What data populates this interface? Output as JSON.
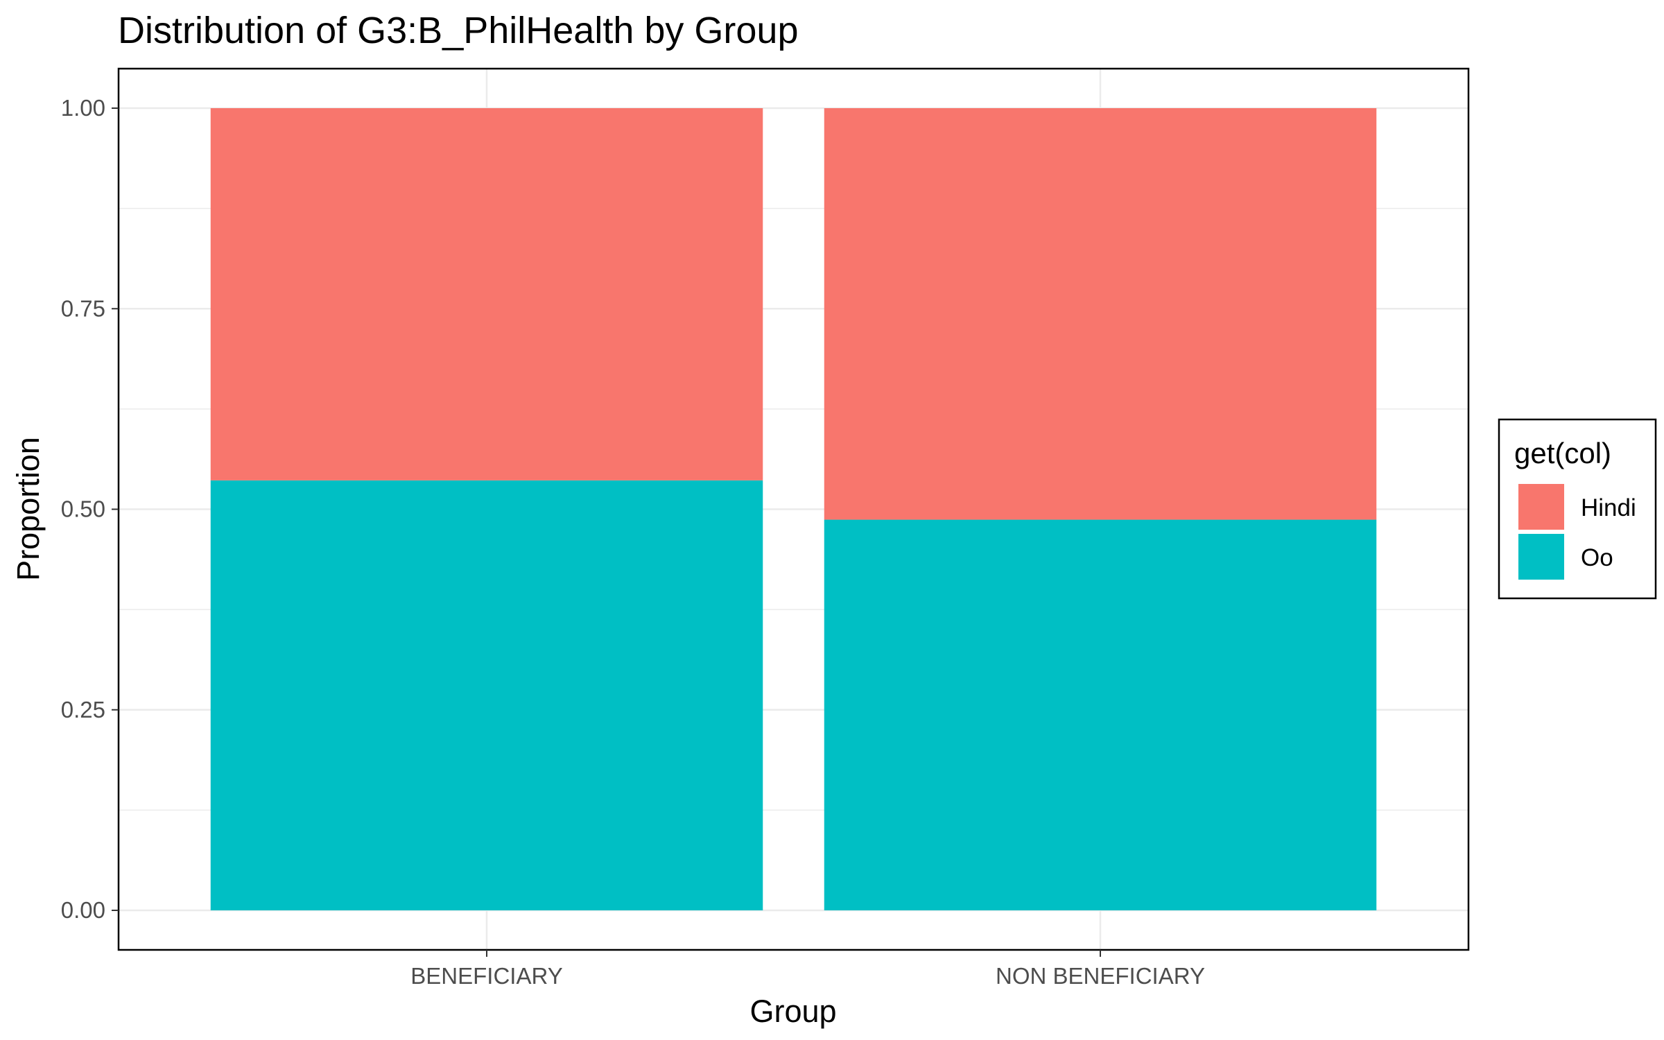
{
  "chart_data": {
    "type": "bar",
    "stacked": true,
    "title": "Distribution of G3:B_PhilHealth by Group",
    "xlabel": "Group",
    "ylabel": "Proportion",
    "categories": [
      "BENEFICIARY",
      "NON BENEFICIARY"
    ],
    "ylim": [
      0,
      1
    ],
    "yticks": [
      "0.00",
      "0.25",
      "0.50",
      "0.75",
      "1.00"
    ],
    "series": [
      {
        "name": "Oo",
        "color": "#00BFC4",
        "values": [
          0.536,
          0.487
        ]
      },
      {
        "name": "Hindi",
        "color": "#F8766D",
        "values": [
          0.464,
          0.513
        ]
      }
    ],
    "legend": {
      "title": "get(col)",
      "placement": "right",
      "entries": [
        "Hindi",
        "Oo"
      ]
    },
    "grid": true
  }
}
